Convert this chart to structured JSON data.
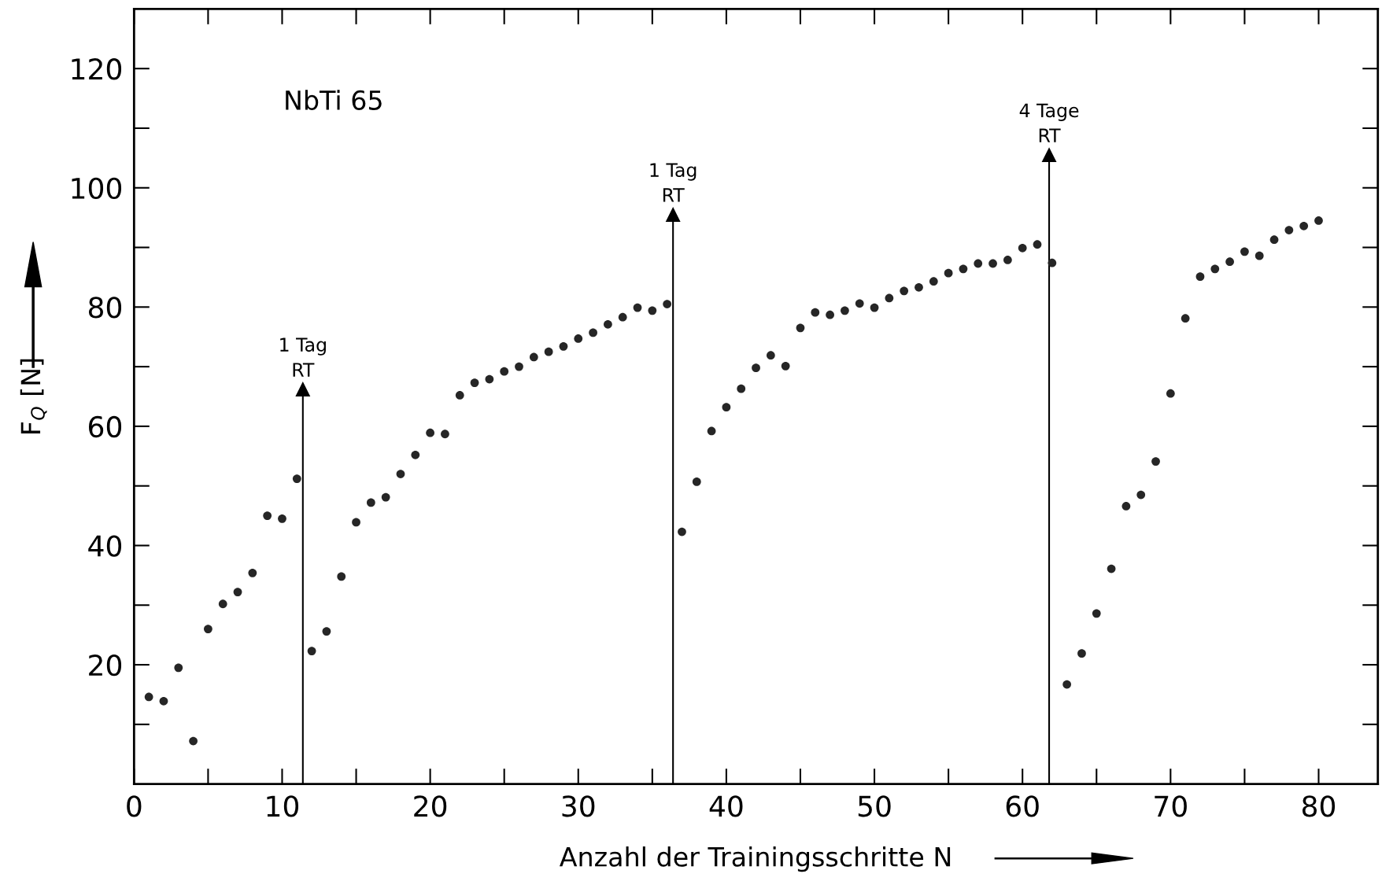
{
  "chart_data": {
    "type": "scatter",
    "xlabel": "Anzahl der Trainingsschritte N",
    "ylabel": "F$_{Q}$ [N]",
    "x": [
      1,
      2,
      3,
      4,
      5,
      6,
      7,
      8,
      9,
      10,
      11,
      12,
      13,
      14,
      15,
      16,
      17,
      18,
      19,
      20,
      21,
      22,
      23,
      24,
      25,
      26,
      27,
      28,
      29,
      30,
      31,
      32,
      33,
      34,
      35,
      36,
      37,
      38,
      39,
      40,
      41,
      42,
      43,
      44,
      45,
      46,
      47,
      48,
      49,
      50,
      51,
      52,
      53,
      54,
      55,
      56,
      57,
      58,
      59,
      60,
      61,
      62,
      63,
      64,
      65,
      66,
      67,
      68,
      69,
      70,
      71,
      72,
      73,
      74,
      75,
      76,
      77,
      78,
      79,
      80
    ],
    "series": [
      {
        "color": "#262626",
        "values": [
          14.6,
          13.9,
          19.5,
          7.2,
          26,
          30.2,
          32.2,
          35.4,
          45,
          44.5,
          51.2,
          22.3,
          25.6,
          34.8,
          43.9,
          47.2,
          48.1,
          52,
          55.2,
          58.9,
          58.7,
          65.2,
          67.3,
          67.9,
          69.2,
          70,
          71.6,
          72.5,
          73.4,
          74.7,
          75.7,
          77.1,
          78.3,
          79.9,
          79.4,
          80.5,
          42.3,
          50.7,
          59.2,
          63.2,
          66.3,
          69.8,
          71.9,
          70.1,
          76.5,
          79.1,
          78.7,
          79.4,
          80.6,
          79.9,
          81.5,
          82.7,
          83.3,
          84.3,
          85.7,
          86.4,
          87.3,
          87.3,
          87.9,
          89.9,
          90.5,
          87.4,
          16.7,
          21.9,
          28.6,
          36.1,
          46.6,
          48.5,
          54.1,
          65.5,
          78.1,
          85.1,
          86.4,
          87.6,
          89.3,
          88.6,
          91.3,
          92.9,
          93.6,
          94.5
        ]
      }
    ],
    "annotations": [
      "NbTi 65"
    ],
    "ref_lines": [
      {
        "axis": "x",
        "value": 11.4,
        "label": "1 Tag\nRT"
      },
      {
        "axis": "x",
        "value": 36.4,
        "label": "1 Tag\nRT"
      },
      {
        "axis": "x",
        "value": 61.8,
        "label": "4 Tage\nRT"
      }
    ],
    "xlim": [
      0,
      84
    ],
    "ylim": [
      0,
      130
    ],
    "xticks": [
      0,
      10,
      20,
      30,
      40,
      50,
      60,
      70,
      80
    ],
    "yticks": [
      20,
      40,
      60,
      80,
      100,
      120
    ],
    "marker": "circle",
    "grid": false,
    "legend": false
  }
}
